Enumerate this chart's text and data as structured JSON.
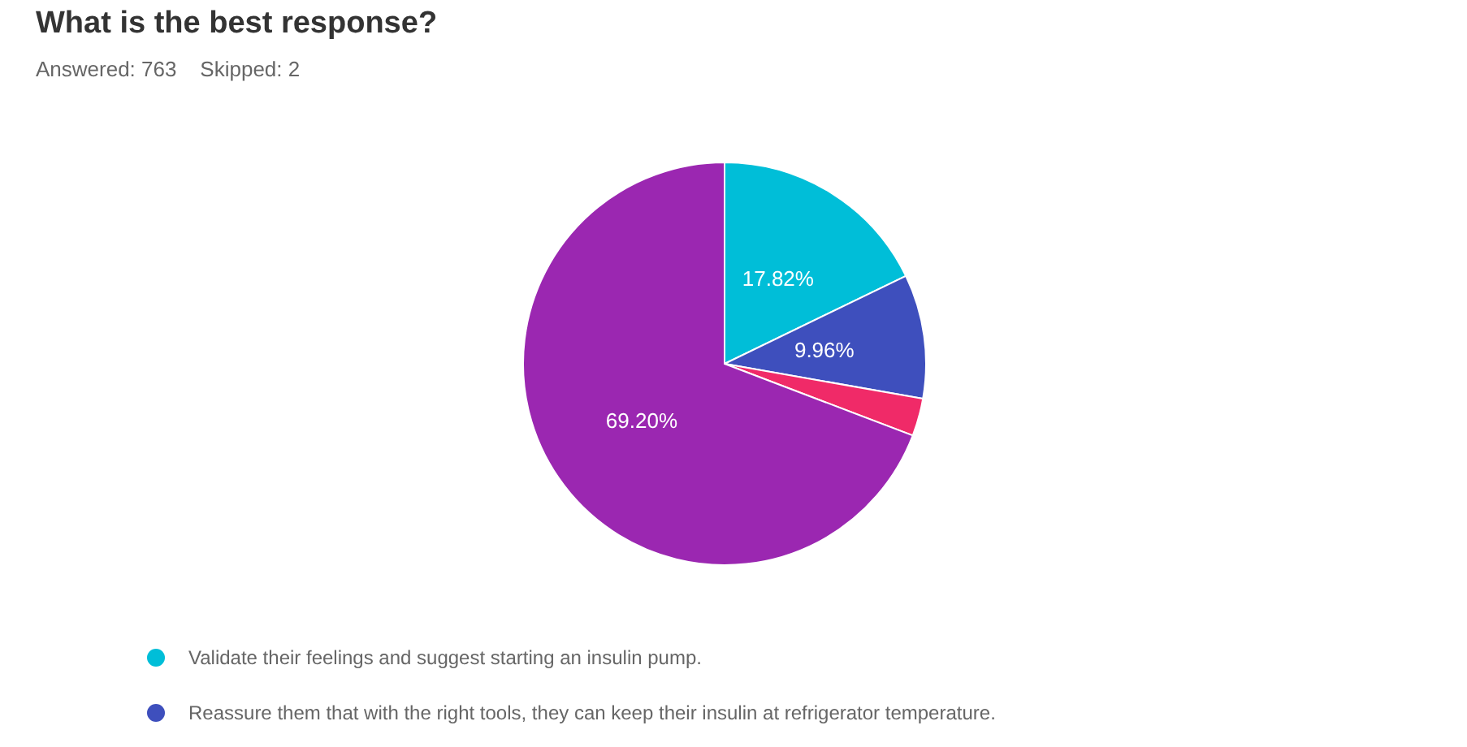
{
  "chart_data": {
    "type": "pie",
    "title": "What is the best response?",
    "subtitle": "Answered: 763    Skipped: 2",
    "categories": [
      "Validate their feelings and suggest starting an insulin pump.",
      "Reassure them that with the right tools, they can keep their insulin at refrigerator temperature.",
      null,
      null
    ],
    "values": [
      17.82,
      9.96,
      3.02,
      69.2
    ],
    "colors": [
      "#00bed8",
      "#3e4fbd",
      "#f02a68",
      "#9b27b1"
    ],
    "value_labels": [
      "17.82%",
      "9.96%",
      null,
      "69.20%"
    ],
    "legend": "bottom"
  }
}
